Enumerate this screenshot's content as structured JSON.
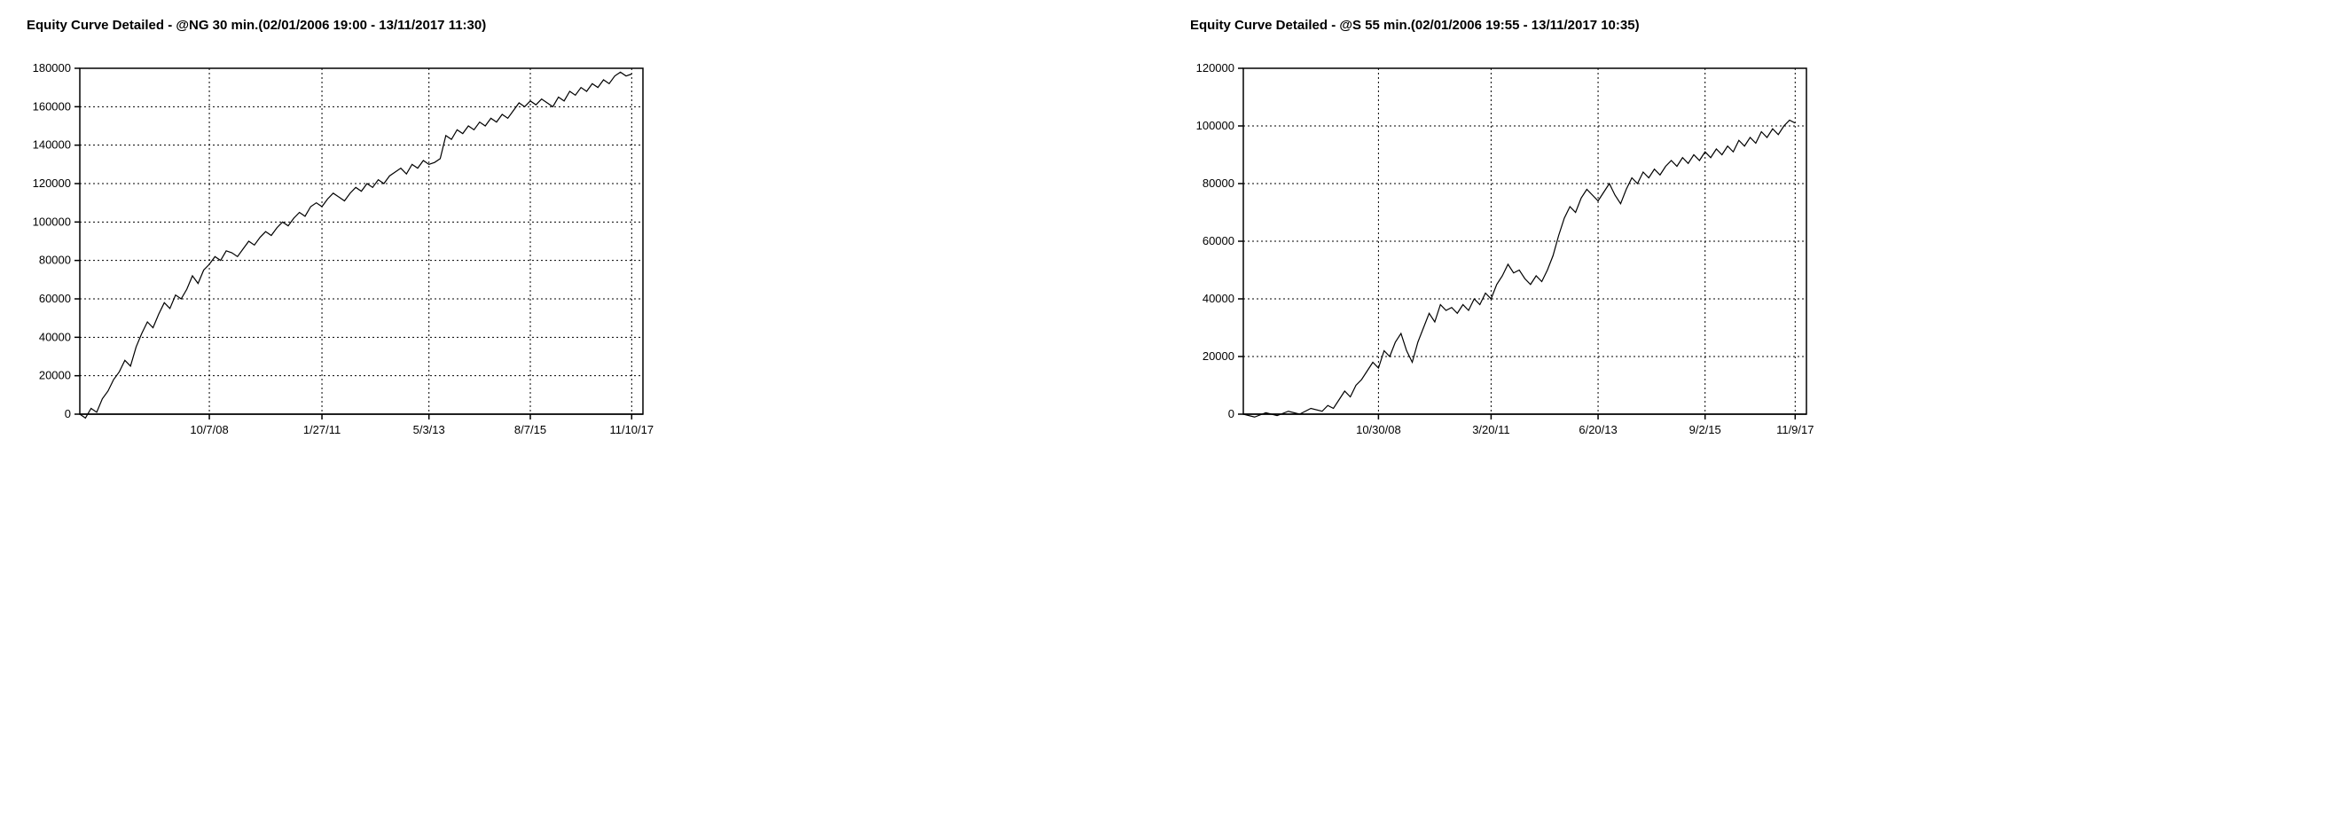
{
  "chart_left": {
    "type": "line",
    "title": "Equity Curve Detailed - @NG 30 min.(02/01/2006 19:00 - 13/11/2017 11:30)",
    "title_fontsize": 15,
    "title_fontweight": "bold",
    "background_color": "#ffffff",
    "grid_color": "#000000",
    "grid_style": "dotted",
    "line_color": "#000000",
    "line_width": 1.2,
    "border_color": "#000000",
    "border_width": 1.5,
    "y_axis": {
      "min": 0,
      "max": 180000,
      "tick_step": 20000,
      "ticks": [
        0,
        20000,
        40000,
        60000,
        80000,
        100000,
        120000,
        140000,
        160000,
        180000
      ],
      "label_fontsize": 13
    },
    "x_axis": {
      "min": 0,
      "max": 100,
      "ticks": [
        23,
        43,
        62,
        80,
        98
      ],
      "tick_labels": [
        "10/7/08",
        "1/27/11",
        "5/3/13",
        "8/7/15",
        "11/10/17"
      ],
      "label_fontsize": 13
    },
    "series": [
      {
        "x": 0,
        "y": 0
      },
      {
        "x": 1,
        "y": -2000
      },
      {
        "x": 2,
        "y": 3000
      },
      {
        "x": 3,
        "y": 1000
      },
      {
        "x": 4,
        "y": 8000
      },
      {
        "x": 5,
        "y": 12000
      },
      {
        "x": 6,
        "y": 18000
      },
      {
        "x": 7,
        "y": 22000
      },
      {
        "x": 8,
        "y": 28000
      },
      {
        "x": 9,
        "y": 25000
      },
      {
        "x": 10,
        "y": 35000
      },
      {
        "x": 11,
        "y": 42000
      },
      {
        "x": 12,
        "y": 48000
      },
      {
        "x": 13,
        "y": 45000
      },
      {
        "x": 14,
        "y": 52000
      },
      {
        "x": 15,
        "y": 58000
      },
      {
        "x": 16,
        "y": 55000
      },
      {
        "x": 17,
        "y": 62000
      },
      {
        "x": 18,
        "y": 60000
      },
      {
        "x": 19,
        "y": 65000
      },
      {
        "x": 20,
        "y": 72000
      },
      {
        "x": 21,
        "y": 68000
      },
      {
        "x": 22,
        "y": 75000
      },
      {
        "x": 23,
        "y": 78000
      },
      {
        "x": 24,
        "y": 82000
      },
      {
        "x": 25,
        "y": 80000
      },
      {
        "x": 26,
        "y": 85000
      },
      {
        "x": 27,
        "y": 84000
      },
      {
        "x": 28,
        "y": 82000
      },
      {
        "x": 29,
        "y": 86000
      },
      {
        "x": 30,
        "y": 90000
      },
      {
        "x": 31,
        "y": 88000
      },
      {
        "x": 32,
        "y": 92000
      },
      {
        "x": 33,
        "y": 95000
      },
      {
        "x": 34,
        "y": 93000
      },
      {
        "x": 35,
        "y": 97000
      },
      {
        "x": 36,
        "y": 100000
      },
      {
        "x": 37,
        "y": 98000
      },
      {
        "x": 38,
        "y": 102000
      },
      {
        "x": 39,
        "y": 105000
      },
      {
        "x": 40,
        "y": 103000
      },
      {
        "x": 41,
        "y": 108000
      },
      {
        "x": 42,
        "y": 110000
      },
      {
        "x": 43,
        "y": 108000
      },
      {
        "x": 44,
        "y": 112000
      },
      {
        "x": 45,
        "y": 115000
      },
      {
        "x": 46,
        "y": 113000
      },
      {
        "x": 47,
        "y": 111000
      },
      {
        "x": 48,
        "y": 115000
      },
      {
        "x": 49,
        "y": 118000
      },
      {
        "x": 50,
        "y": 116000
      },
      {
        "x": 51,
        "y": 120000
      },
      {
        "x": 52,
        "y": 118000
      },
      {
        "x": 53,
        "y": 122000
      },
      {
        "x": 54,
        "y": 120000
      },
      {
        "x": 55,
        "y": 124000
      },
      {
        "x": 56,
        "y": 126000
      },
      {
        "x": 57,
        "y": 128000
      },
      {
        "x": 58,
        "y": 125000
      },
      {
        "x": 59,
        "y": 130000
      },
      {
        "x": 60,
        "y": 128000
      },
      {
        "x": 61,
        "y": 132000
      },
      {
        "x": 62,
        "y": 130000
      },
      {
        "x": 63,
        "y": 131000
      },
      {
        "x": 64,
        "y": 133000
      },
      {
        "x": 65,
        "y": 145000
      },
      {
        "x": 66,
        "y": 143000
      },
      {
        "x": 67,
        "y": 148000
      },
      {
        "x": 68,
        "y": 146000
      },
      {
        "x": 69,
        "y": 150000
      },
      {
        "x": 70,
        "y": 148000
      },
      {
        "x": 71,
        "y": 152000
      },
      {
        "x": 72,
        "y": 150000
      },
      {
        "x": 73,
        "y": 154000
      },
      {
        "x": 74,
        "y": 152000
      },
      {
        "x": 75,
        "y": 156000
      },
      {
        "x": 76,
        "y": 154000
      },
      {
        "x": 77,
        "y": 158000
      },
      {
        "x": 78,
        "y": 162000
      },
      {
        "x": 79,
        "y": 160000
      },
      {
        "x": 80,
        "y": 163000
      },
      {
        "x": 81,
        "y": 161000
      },
      {
        "x": 82,
        "y": 164000
      },
      {
        "x": 83,
        "y": 162000
      },
      {
        "x": 84,
        "y": 160000
      },
      {
        "x": 85,
        "y": 165000
      },
      {
        "x": 86,
        "y": 163000
      },
      {
        "x": 87,
        "y": 168000
      },
      {
        "x": 88,
        "y": 166000
      },
      {
        "x": 89,
        "y": 170000
      },
      {
        "x": 90,
        "y": 168000
      },
      {
        "x": 91,
        "y": 172000
      },
      {
        "x": 92,
        "y": 170000
      },
      {
        "x": 93,
        "y": 174000
      },
      {
        "x": 94,
        "y": 172000
      },
      {
        "x": 95,
        "y": 176000
      },
      {
        "x": 96,
        "y": 178000
      },
      {
        "x": 97,
        "y": 176000
      },
      {
        "x": 98,
        "y": 177000
      }
    ]
  },
  "chart_right": {
    "type": "line",
    "title": "Equity Curve Detailed - @S 55 min.(02/01/2006 19:55 - 13/11/2017 10:35)",
    "title_fontsize": 15,
    "title_fontweight": "bold",
    "background_color": "#ffffff",
    "grid_color": "#000000",
    "grid_style": "dotted",
    "line_color": "#000000",
    "line_width": 1.2,
    "border_color": "#000000",
    "border_width": 1.5,
    "y_axis": {
      "min": 0,
      "max": 120000,
      "tick_step": 20000,
      "ticks": [
        0,
        20000,
        40000,
        60000,
        80000,
        100000,
        120000
      ],
      "label_fontsize": 13
    },
    "x_axis": {
      "min": 0,
      "max": 100,
      "ticks": [
        24,
        44,
        63,
        82,
        98
      ],
      "tick_labels": [
        "10/30/08",
        "3/20/11",
        "6/20/13",
        "9/2/15",
        "11/9/17"
      ],
      "label_fontsize": 13
    },
    "series": [
      {
        "x": 0,
        "y": 0
      },
      {
        "x": 2,
        "y": -1000
      },
      {
        "x": 4,
        "y": 500
      },
      {
        "x": 6,
        "y": -500
      },
      {
        "x": 8,
        "y": 1000
      },
      {
        "x": 10,
        "y": 0
      },
      {
        "x": 12,
        "y": 2000
      },
      {
        "x": 14,
        "y": 1000
      },
      {
        "x": 15,
        "y": 3000
      },
      {
        "x": 16,
        "y": 2000
      },
      {
        "x": 17,
        "y": 5000
      },
      {
        "x": 18,
        "y": 8000
      },
      {
        "x": 19,
        "y": 6000
      },
      {
        "x": 20,
        "y": 10000
      },
      {
        "x": 21,
        "y": 12000
      },
      {
        "x": 22,
        "y": 15000
      },
      {
        "x": 23,
        "y": 18000
      },
      {
        "x": 24,
        "y": 16000
      },
      {
        "x": 25,
        "y": 22000
      },
      {
        "x": 26,
        "y": 20000
      },
      {
        "x": 27,
        "y": 25000
      },
      {
        "x": 28,
        "y": 28000
      },
      {
        "x": 29,
        "y": 22000
      },
      {
        "x": 30,
        "y": 18000
      },
      {
        "x": 31,
        "y": 25000
      },
      {
        "x": 32,
        "y": 30000
      },
      {
        "x": 33,
        "y": 35000
      },
      {
        "x": 34,
        "y": 32000
      },
      {
        "x": 35,
        "y": 38000
      },
      {
        "x": 36,
        "y": 36000
      },
      {
        "x": 37,
        "y": 37000
      },
      {
        "x": 38,
        "y": 35000
      },
      {
        "x": 39,
        "y": 38000
      },
      {
        "x": 40,
        "y": 36000
      },
      {
        "x": 41,
        "y": 40000
      },
      {
        "x": 42,
        "y": 38000
      },
      {
        "x": 43,
        "y": 42000
      },
      {
        "x": 44,
        "y": 40000
      },
      {
        "x": 45,
        "y": 45000
      },
      {
        "x": 46,
        "y": 48000
      },
      {
        "x": 47,
        "y": 52000
      },
      {
        "x": 48,
        "y": 49000
      },
      {
        "x": 49,
        "y": 50000
      },
      {
        "x": 50,
        "y": 47000
      },
      {
        "x": 51,
        "y": 45000
      },
      {
        "x": 52,
        "y": 48000
      },
      {
        "x": 53,
        "y": 46000
      },
      {
        "x": 54,
        "y": 50000
      },
      {
        "x": 55,
        "y": 55000
      },
      {
        "x": 56,
        "y": 62000
      },
      {
        "x": 57,
        "y": 68000
      },
      {
        "x": 58,
        "y": 72000
      },
      {
        "x": 59,
        "y": 70000
      },
      {
        "x": 60,
        "y": 75000
      },
      {
        "x": 61,
        "y": 78000
      },
      {
        "x": 62,
        "y": 76000
      },
      {
        "x": 63,
        "y": 74000
      },
      {
        "x": 64,
        "y": 77000
      },
      {
        "x": 65,
        "y": 80000
      },
      {
        "x": 66,
        "y": 76000
      },
      {
        "x": 67,
        "y": 73000
      },
      {
        "x": 68,
        "y": 78000
      },
      {
        "x": 69,
        "y": 82000
      },
      {
        "x": 70,
        "y": 80000
      },
      {
        "x": 71,
        "y": 84000
      },
      {
        "x": 72,
        "y": 82000
      },
      {
        "x": 73,
        "y": 85000
      },
      {
        "x": 74,
        "y": 83000
      },
      {
        "x": 75,
        "y": 86000
      },
      {
        "x": 76,
        "y": 88000
      },
      {
        "x": 77,
        "y": 86000
      },
      {
        "x": 78,
        "y": 89000
      },
      {
        "x": 79,
        "y": 87000
      },
      {
        "x": 80,
        "y": 90000
      },
      {
        "x": 81,
        "y": 88000
      },
      {
        "x": 82,
        "y": 91000
      },
      {
        "x": 83,
        "y": 89000
      },
      {
        "x": 84,
        "y": 92000
      },
      {
        "x": 85,
        "y": 90000
      },
      {
        "x": 86,
        "y": 93000
      },
      {
        "x": 87,
        "y": 91000
      },
      {
        "x": 88,
        "y": 95000
      },
      {
        "x": 89,
        "y": 93000
      },
      {
        "x": 90,
        "y": 96000
      },
      {
        "x": 91,
        "y": 94000
      },
      {
        "x": 92,
        "y": 98000
      },
      {
        "x": 93,
        "y": 96000
      },
      {
        "x": 94,
        "y": 99000
      },
      {
        "x": 95,
        "y": 97000
      },
      {
        "x": 96,
        "y": 100000
      },
      {
        "x": 97,
        "y": 102000
      },
      {
        "x": 98,
        "y": 101000
      }
    ]
  }
}
